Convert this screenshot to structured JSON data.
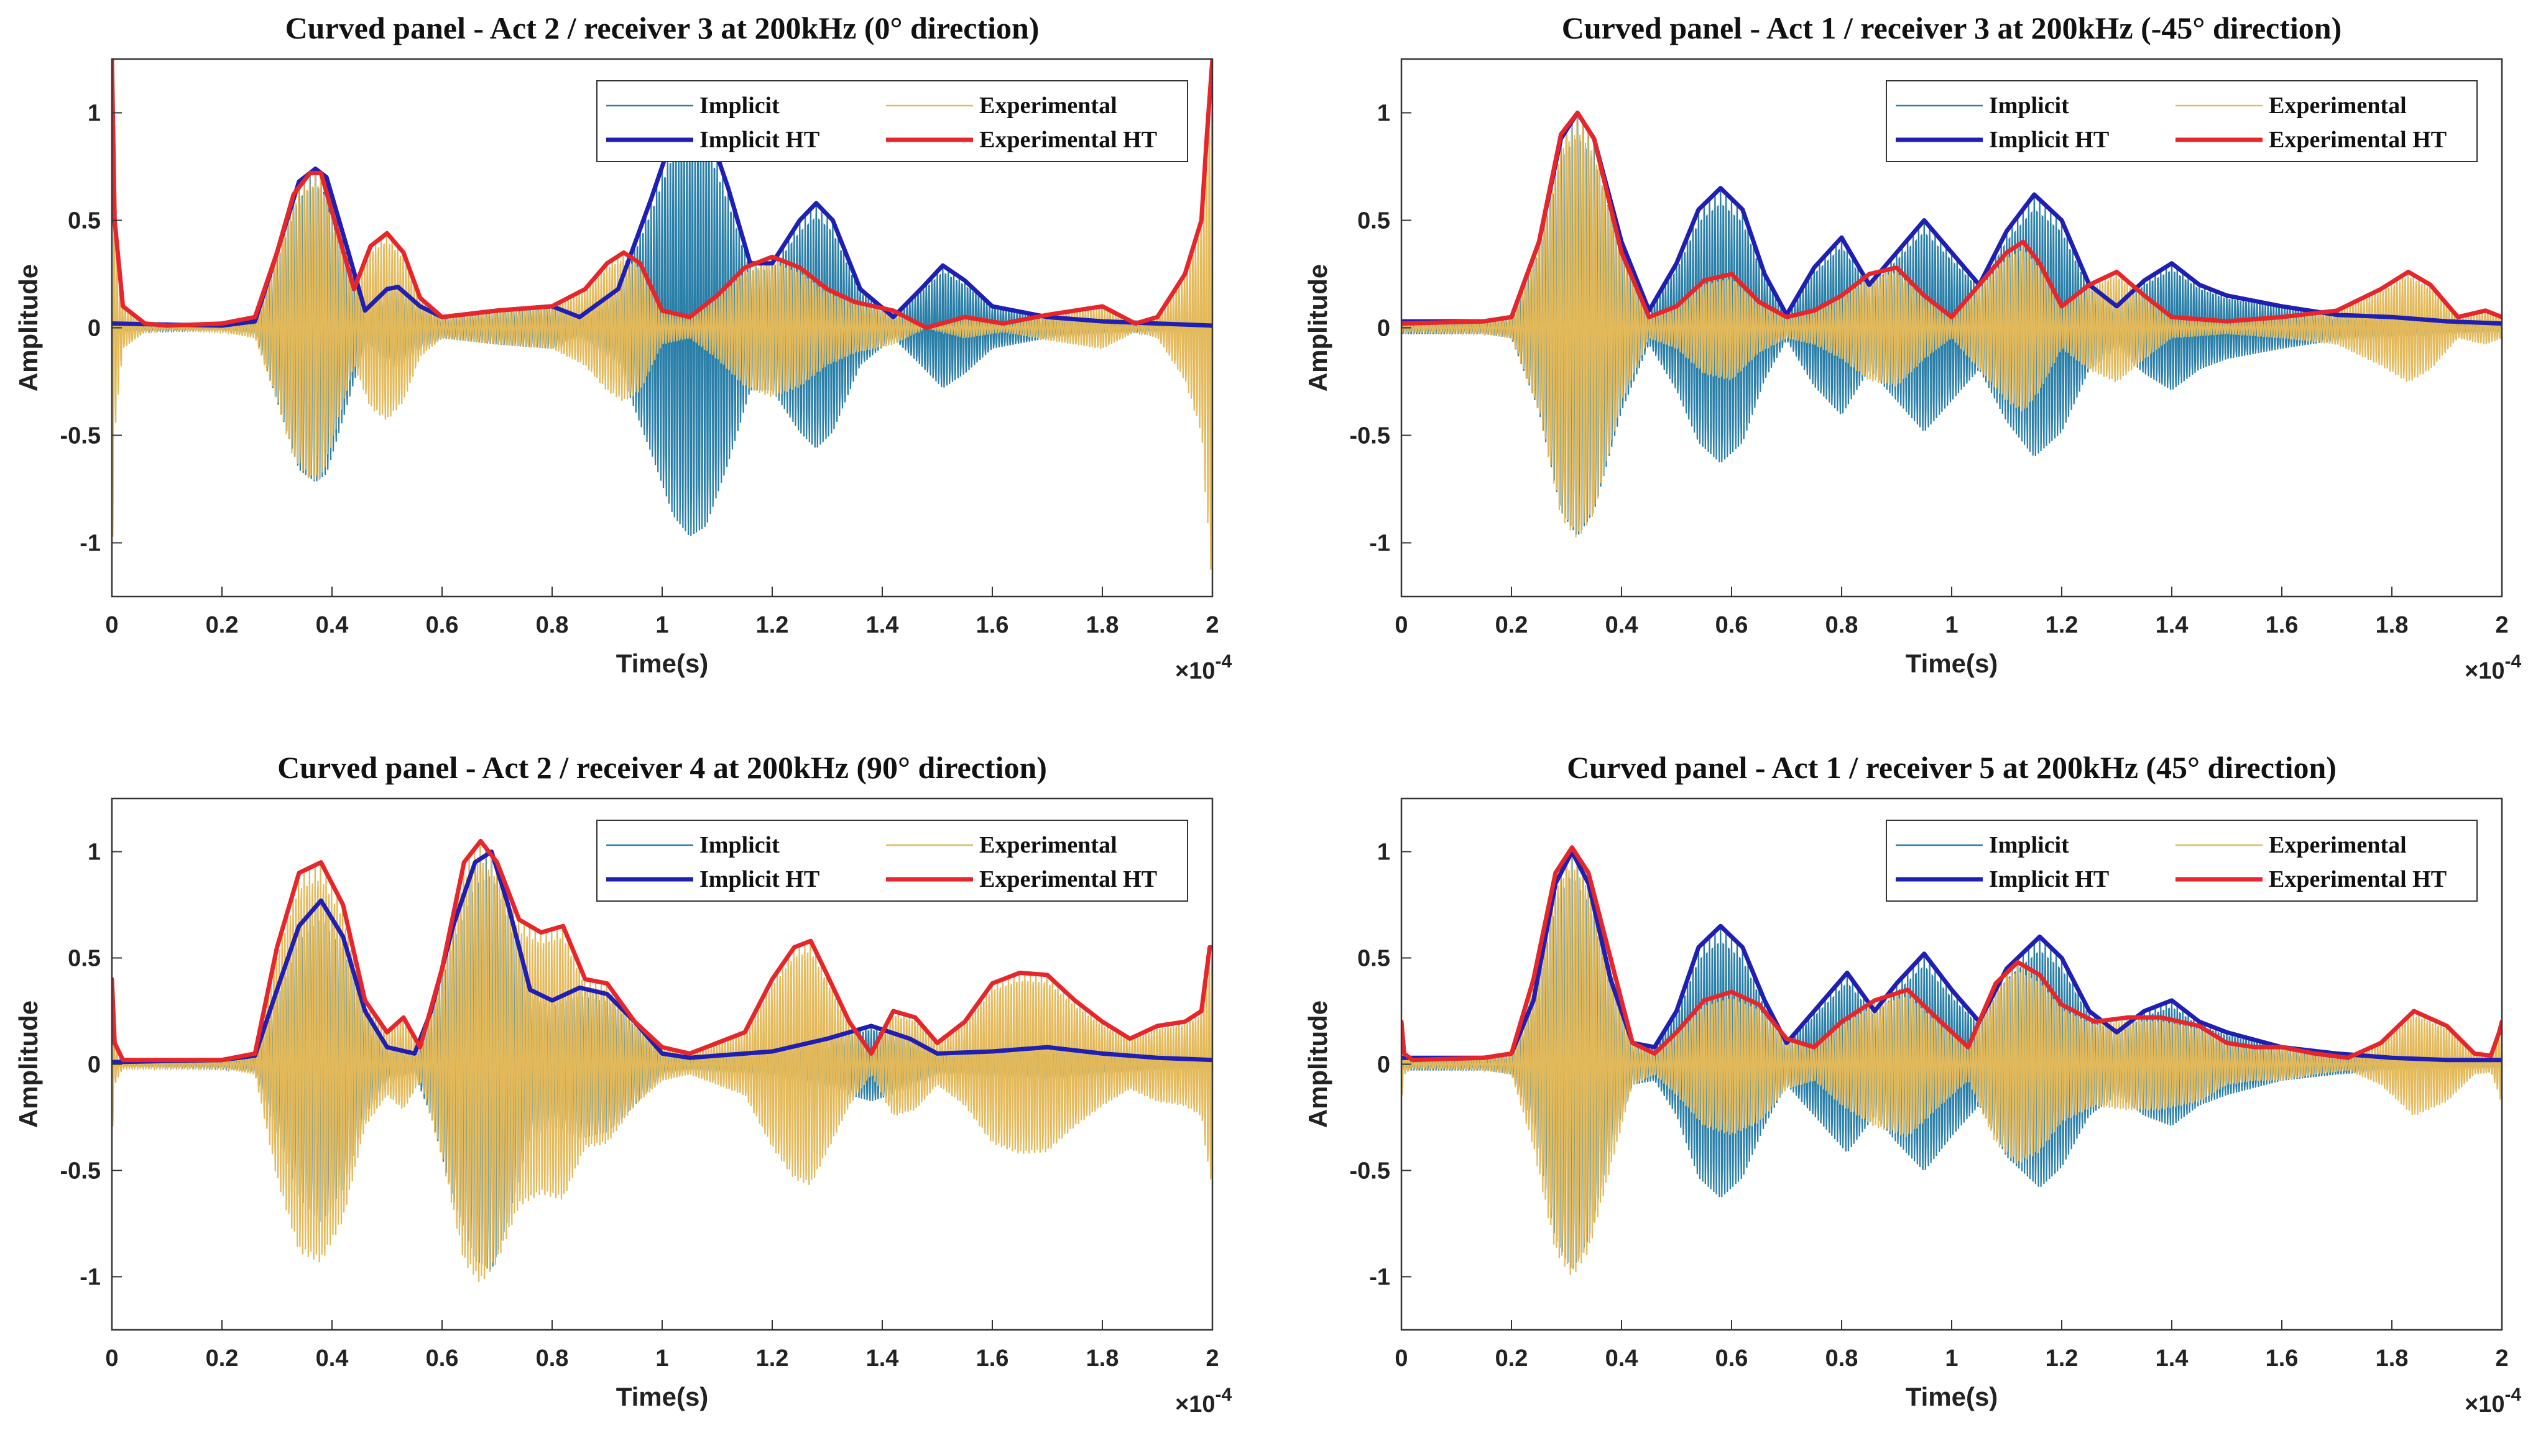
{
  "chart_data": [
    {
      "type": "line",
      "title": "Curved panel - Act 2 / receiver 3 at 200kHz (0° direction)",
      "xlabel": "Time(s)",
      "ylabel": "Amplitude",
      "x_multiplier": "×10",
      "x_exponent": "-4",
      "xlim": [
        0,
        2
      ],
      "ylim": [
        -1.25,
        1.25
      ],
      "xticks": [
        "0",
        "0.2",
        "0.4",
        "0.6",
        "0.8",
        "1",
        "1.2",
        "1.4",
        "1.6",
        "1.8",
        "2"
      ],
      "yticks": [
        "-1",
        "-0.5",
        "0",
        "0.5",
        "1"
      ],
      "legend": {
        "position": "top-right",
        "entries": [
          "Implicit",
          "Experimental",
          "Implicit HT",
          "Experimental HT"
        ]
      },
      "series": [
        {
          "name": "Implicit HT",
          "color": "#1f1fb4",
          "x": [
            0,
            0.2,
            0.26,
            0.3,
            0.34,
            0.37,
            0.39,
            0.43,
            0.46,
            0.5,
            0.52,
            0.56,
            0.6,
            0.7,
            0.8,
            0.85,
            0.92,
            0.98,
            1.02,
            1.05,
            1.08,
            1.12,
            1.16,
            1.2,
            1.25,
            1.28,
            1.31,
            1.36,
            1.42,
            1.47,
            1.51,
            1.55,
            1.6,
            1.7,
            1.8,
            1.9,
            2.0
          ],
          "values": [
            0.02,
            0.01,
            0.03,
            0.35,
            0.68,
            0.74,
            0.7,
            0.35,
            0.08,
            0.18,
            0.19,
            0.1,
            0.05,
            0.08,
            0.1,
            0.05,
            0.18,
            0.6,
            0.9,
            1.0,
            0.95,
            0.65,
            0.3,
            0.3,
            0.5,
            0.58,
            0.5,
            0.18,
            0.05,
            0.18,
            0.29,
            0.22,
            0.1,
            0.05,
            0.03,
            0.02,
            0.01
          ]
        },
        {
          "name": "Experimental HT",
          "color": "#e6262a",
          "x": [
            0,
            0.005,
            0.02,
            0.06,
            0.1,
            0.2,
            0.26,
            0.3,
            0.33,
            0.36,
            0.38,
            0.41,
            0.44,
            0.47,
            0.5,
            0.53,
            0.56,
            0.6,
            0.7,
            0.8,
            0.86,
            0.9,
            0.93,
            0.96,
            1.0,
            1.05,
            1.1,
            1.15,
            1.2,
            1.25,
            1.3,
            1.35,
            1.42,
            1.48,
            1.55,
            1.62,
            1.7,
            1.8,
            1.86,
            1.9,
            1.95,
            1.98,
            1.99,
            2.0
          ],
          "values": [
            1.25,
            0.5,
            0.1,
            0.02,
            0.01,
            0.02,
            0.05,
            0.35,
            0.62,
            0.72,
            0.72,
            0.45,
            0.18,
            0.38,
            0.44,
            0.35,
            0.14,
            0.05,
            0.08,
            0.1,
            0.18,
            0.3,
            0.35,
            0.3,
            0.08,
            0.05,
            0.15,
            0.28,
            0.33,
            0.28,
            0.18,
            0.12,
            0.08,
            0.0,
            0.05,
            0.02,
            0.06,
            0.1,
            0.02,
            0.05,
            0.25,
            0.5,
            0.9,
            1.25
          ]
        }
      ]
    },
    {
      "type": "line",
      "title": "Curved panel - Act 1 / receiver 3 at 200kHz (-45° direction)",
      "xlabel": "Time(s)",
      "ylabel": "Amplitude",
      "x_multiplier": "×10",
      "x_exponent": "-4",
      "xlim": [
        0,
        2
      ],
      "ylim": [
        -1.25,
        1.25
      ],
      "xticks": [
        "0",
        "0.2",
        "0.4",
        "0.6",
        "0.8",
        "1",
        "1.2",
        "1.4",
        "1.6",
        "1.8",
        "2"
      ],
      "yticks": [
        "-1",
        "-0.5",
        "0",
        "0.5",
        "1"
      ],
      "legend": {
        "position": "top-right",
        "entries": [
          "Implicit",
          "Experimental",
          "Implicit HT",
          "Experimental HT"
        ]
      },
      "series": [
        {
          "name": "Implicit HT",
          "color": "#1f1fb4",
          "x": [
            0,
            0.15,
            0.2,
            0.25,
            0.29,
            0.32,
            0.35,
            0.4,
            0.45,
            0.5,
            0.54,
            0.58,
            0.62,
            0.66,
            0.7,
            0.75,
            0.8,
            0.85,
            0.9,
            0.95,
            1.0,
            1.05,
            1.1,
            1.15,
            1.2,
            1.25,
            1.3,
            1.35,
            1.4,
            1.45,
            1.5,
            1.6,
            1.7,
            1.8,
            1.9,
            2.0
          ],
          "values": [
            0.03,
            0.03,
            0.05,
            0.4,
            0.88,
            1.0,
            0.88,
            0.4,
            0.08,
            0.3,
            0.55,
            0.65,
            0.55,
            0.25,
            0.06,
            0.28,
            0.42,
            0.2,
            0.35,
            0.5,
            0.35,
            0.2,
            0.45,
            0.62,
            0.5,
            0.2,
            0.1,
            0.22,
            0.3,
            0.2,
            0.15,
            0.1,
            0.06,
            0.05,
            0.03,
            0.02
          ]
        },
        {
          "name": "Experimental HT",
          "color": "#e6262a",
          "x": [
            0,
            0.15,
            0.2,
            0.25,
            0.29,
            0.32,
            0.35,
            0.4,
            0.45,
            0.5,
            0.55,
            0.6,
            0.65,
            0.7,
            0.75,
            0.8,
            0.85,
            0.9,
            0.95,
            1.0,
            1.05,
            1.1,
            1.13,
            1.16,
            1.2,
            1.25,
            1.3,
            1.35,
            1.4,
            1.5,
            1.6,
            1.7,
            1.78,
            1.83,
            1.87,
            1.92,
            1.97,
            2.0
          ],
          "values": [
            0.02,
            0.03,
            0.05,
            0.4,
            0.9,
            1.0,
            0.88,
            0.35,
            0.05,
            0.1,
            0.22,
            0.25,
            0.12,
            0.05,
            0.08,
            0.15,
            0.25,
            0.28,
            0.15,
            0.05,
            0.2,
            0.35,
            0.4,
            0.3,
            0.1,
            0.2,
            0.26,
            0.15,
            0.05,
            0.03,
            0.05,
            0.08,
            0.18,
            0.26,
            0.2,
            0.05,
            0.08,
            0.05
          ]
        }
      ]
    },
    {
      "type": "line",
      "title": "Curved panel - Act 2 / receiver 4 at 200kHz (90° direction)",
      "xlabel": "Time(s)",
      "ylabel": "Amplitude",
      "x_multiplier": "×10",
      "x_exponent": "-4",
      "xlim": [
        0,
        2
      ],
      "ylim": [
        -1.25,
        1.25
      ],
      "xticks": [
        "0",
        "0.2",
        "0.4",
        "0.6",
        "0.8",
        "1",
        "1.2",
        "1.4",
        "1.6",
        "1.8",
        "2"
      ],
      "yticks": [
        "-1",
        "-0.5",
        "0",
        "0.5",
        "1"
      ],
      "legend": {
        "position": "top-right",
        "entries": [
          "Implicit",
          "Experimental",
          "Implicit HT",
          "Experimental HT"
        ]
      },
      "series": [
        {
          "name": "Implicit HT",
          "color": "#1f1fb4",
          "x": [
            0,
            0.2,
            0.26,
            0.3,
            0.34,
            0.38,
            0.42,
            0.46,
            0.5,
            0.55,
            0.58,
            0.62,
            0.66,
            0.69,
            0.72,
            0.76,
            0.8,
            0.85,
            0.9,
            0.95,
            1.0,
            1.05,
            1.1,
            1.2,
            1.3,
            1.38,
            1.45,
            1.5,
            1.6,
            1.7,
            1.8,
            1.9,
            2.0
          ],
          "values": [
            0.01,
            0.02,
            0.04,
            0.35,
            0.65,
            0.77,
            0.6,
            0.25,
            0.08,
            0.05,
            0.25,
            0.65,
            0.95,
            1.0,
            0.75,
            0.35,
            0.3,
            0.36,
            0.33,
            0.2,
            0.05,
            0.03,
            0.04,
            0.06,
            0.12,
            0.18,
            0.12,
            0.05,
            0.06,
            0.08,
            0.05,
            0.03,
            0.02
          ]
        },
        {
          "name": "Experimental HT",
          "color": "#e6262a",
          "x": [
            0,
            0.005,
            0.02,
            0.1,
            0.2,
            0.26,
            0.3,
            0.34,
            0.38,
            0.42,
            0.46,
            0.5,
            0.53,
            0.56,
            0.6,
            0.64,
            0.67,
            0.7,
            0.74,
            0.78,
            0.82,
            0.86,
            0.9,
            0.95,
            1.0,
            1.05,
            1.1,
            1.15,
            1.2,
            1.24,
            1.27,
            1.3,
            1.34,
            1.38,
            1.42,
            1.46,
            1.5,
            1.55,
            1.6,
            1.65,
            1.7,
            1.75,
            1.8,
            1.85,
            1.9,
            1.95,
            1.98,
            1.995,
            2.0
          ],
          "values": [
            0.4,
            0.1,
            0.02,
            0.02,
            0.02,
            0.05,
            0.55,
            0.9,
            0.95,
            0.75,
            0.3,
            0.15,
            0.22,
            0.08,
            0.45,
            0.95,
            1.05,
            0.95,
            0.68,
            0.62,
            0.65,
            0.4,
            0.38,
            0.2,
            0.08,
            0.05,
            0.1,
            0.15,
            0.4,
            0.55,
            0.58,
            0.42,
            0.2,
            0.05,
            0.25,
            0.22,
            0.1,
            0.2,
            0.38,
            0.43,
            0.42,
            0.3,
            0.2,
            0.12,
            0.18,
            0.2,
            0.25,
            0.55,
            0.55
          ]
        }
      ]
    },
    {
      "type": "line",
      "title": "Curved panel - Act 1 / receiver 5 at 200kHz (45° direction)",
      "xlabel": "Time(s)",
      "ylabel": "Amplitude",
      "x_multiplier": "×10",
      "x_exponent": "-4",
      "xlim": [
        0,
        2
      ],
      "ylim": [
        -1.25,
        1.25
      ],
      "xticks": [
        "0",
        "0.2",
        "0.4",
        "0.6",
        "0.8",
        "1",
        "1.2",
        "1.4",
        "1.6",
        "1.8",
        "2"
      ],
      "yticks": [
        "-1",
        "-0.5",
        "0",
        "0.5",
        "1"
      ],
      "legend": {
        "position": "top-right",
        "entries": [
          "Implicit",
          "Experimental",
          "Implicit HT",
          "Experimental HT"
        ]
      },
      "series": [
        {
          "name": "Implicit HT",
          "color": "#1f1fb4",
          "x": [
            0,
            0.15,
            0.2,
            0.24,
            0.28,
            0.31,
            0.34,
            0.38,
            0.42,
            0.46,
            0.5,
            0.54,
            0.58,
            0.62,
            0.66,
            0.7,
            0.75,
            0.81,
            0.86,
            0.9,
            0.95,
            1.0,
            1.05,
            1.1,
            1.16,
            1.2,
            1.25,
            1.3,
            1.35,
            1.4,
            1.45,
            1.5,
            1.6,
            1.7,
            1.8,
            1.9,
            2.0
          ],
          "values": [
            0.03,
            0.03,
            0.05,
            0.3,
            0.85,
            1.0,
            0.85,
            0.4,
            0.1,
            0.08,
            0.25,
            0.55,
            0.65,
            0.55,
            0.3,
            0.1,
            0.25,
            0.43,
            0.25,
            0.38,
            0.52,
            0.35,
            0.2,
            0.45,
            0.6,
            0.5,
            0.25,
            0.15,
            0.25,
            0.3,
            0.2,
            0.15,
            0.08,
            0.05,
            0.03,
            0.02,
            0.02
          ]
        },
        {
          "name": "Experimental HT",
          "color": "#e6262a",
          "x": [
            0,
            0.005,
            0.02,
            0.15,
            0.2,
            0.24,
            0.28,
            0.31,
            0.34,
            0.38,
            0.42,
            0.46,
            0.5,
            0.55,
            0.6,
            0.65,
            0.7,
            0.75,
            0.8,
            0.86,
            0.92,
            0.98,
            1.03,
            1.08,
            1.12,
            1.16,
            1.2,
            1.26,
            1.32,
            1.38,
            1.45,
            1.5,
            1.55,
            1.6,
            1.66,
            1.72,
            1.78,
            1.84,
            1.9,
            1.95,
            1.98,
            1.995,
            2.0
          ],
          "values": [
            0.2,
            0.05,
            0.02,
            0.03,
            0.05,
            0.4,
            0.9,
            1.02,
            0.9,
            0.5,
            0.1,
            0.05,
            0.15,
            0.3,
            0.34,
            0.28,
            0.12,
            0.08,
            0.2,
            0.3,
            0.35,
            0.2,
            0.08,
            0.38,
            0.48,
            0.42,
            0.28,
            0.2,
            0.22,
            0.22,
            0.18,
            0.1,
            0.08,
            0.08,
            0.05,
            0.03,
            0.1,
            0.25,
            0.18,
            0.05,
            0.04,
            0.15,
            0.2
          ]
        }
      ]
    }
  ]
}
